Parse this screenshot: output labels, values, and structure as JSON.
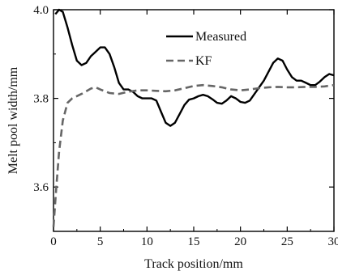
{
  "chart_data": {
    "type": "line",
    "title": "",
    "xlabel": "Track position/mm",
    "ylabel": "Melt pool width/mm",
    "xlim": [
      0,
      30
    ],
    "ylim": [
      3.5,
      4.0
    ],
    "x_ticks": [
      0,
      5,
      10,
      15,
      20,
      25,
      30
    ],
    "x_tick_labels": [
      "0",
      "5",
      "10",
      "15",
      "20",
      "25",
      "30"
    ],
    "y_ticks": [
      3.6,
      3.8,
      4.0
    ],
    "y_tick_labels": [
      "3.6",
      "3.8",
      "4.0"
    ],
    "grid": false,
    "legend": "top-right",
    "series": [
      {
        "name": "Measured",
        "style": "solid",
        "color": "#000000",
        "points": [
          [
            0.2,
            3.99
          ],
          [
            0.6,
            4.0
          ],
          [
            1.0,
            3.995
          ],
          [
            1.5,
            3.96
          ],
          [
            2.0,
            3.92
          ],
          [
            2.5,
            3.885
          ],
          [
            3.0,
            3.875
          ],
          [
            3.5,
            3.88
          ],
          [
            4.0,
            3.895
          ],
          [
            4.5,
            3.905
          ],
          [
            5.0,
            3.915
          ],
          [
            5.5,
            3.915
          ],
          [
            6.0,
            3.9
          ],
          [
            6.5,
            3.87
          ],
          [
            7.0,
            3.835
          ],
          [
            7.5,
            3.82
          ],
          [
            8.0,
            3.82
          ],
          [
            8.5,
            3.815
          ],
          [
            9.0,
            3.805
          ],
          [
            9.5,
            3.8
          ],
          [
            10.0,
            3.8
          ],
          [
            10.5,
            3.8
          ],
          [
            11.0,
            3.795
          ],
          [
            11.5,
            3.77
          ],
          [
            12.0,
            3.745
          ],
          [
            12.5,
            3.738
          ],
          [
            13.0,
            3.745
          ],
          [
            13.5,
            3.765
          ],
          [
            14.0,
            3.785
          ],
          [
            14.5,
            3.797
          ],
          [
            15.0,
            3.8
          ],
          [
            15.5,
            3.805
          ],
          [
            16.0,
            3.808
          ],
          [
            16.5,
            3.805
          ],
          [
            17.0,
            3.798
          ],
          [
            17.5,
            3.79
          ],
          [
            18.0,
            3.788
          ],
          [
            18.5,
            3.795
          ],
          [
            19.0,
            3.805
          ],
          [
            19.5,
            3.8
          ],
          [
            20.0,
            3.792
          ],
          [
            20.5,
            3.79
          ],
          [
            21.0,
            3.795
          ],
          [
            21.5,
            3.81
          ],
          [
            22.0,
            3.825
          ],
          [
            22.5,
            3.84
          ],
          [
            23.0,
            3.86
          ],
          [
            23.5,
            3.88
          ],
          [
            24.0,
            3.89
          ],
          [
            24.5,
            3.885
          ],
          [
            25.0,
            3.865
          ],
          [
            25.5,
            3.848
          ],
          [
            26.0,
            3.84
          ],
          [
            26.5,
            3.84
          ],
          [
            27.0,
            3.835
          ],
          [
            27.5,
            3.83
          ],
          [
            28.0,
            3.83
          ],
          [
            28.5,
            3.838
          ],
          [
            29.0,
            3.848
          ],
          [
            29.5,
            3.855
          ],
          [
            30.0,
            3.852
          ]
        ]
      },
      {
        "name": "KF",
        "style": "dashed",
        "color": "#666666",
        "points": [
          [
            0.0,
            3.51
          ],
          [
            0.3,
            3.6
          ],
          [
            0.6,
            3.68
          ],
          [
            1.0,
            3.75
          ],
          [
            1.5,
            3.79
          ],
          [
            2.0,
            3.8
          ],
          [
            3.0,
            3.81
          ],
          [
            4.0,
            3.822
          ],
          [
            4.5,
            3.825
          ],
          [
            5.0,
            3.82
          ],
          [
            6.0,
            3.812
          ],
          [
            7.0,
            3.81
          ],
          [
            8.0,
            3.815
          ],
          [
            9.0,
            3.818
          ],
          [
            10.0,
            3.818
          ],
          [
            11.0,
            3.817
          ],
          [
            12.0,
            3.816
          ],
          [
            13.0,
            3.818
          ],
          [
            14.0,
            3.823
          ],
          [
            15.0,
            3.828
          ],
          [
            16.0,
            3.83
          ],
          [
            17.0,
            3.828
          ],
          [
            18.0,
            3.825
          ],
          [
            19.0,
            3.82
          ],
          [
            20.0,
            3.818
          ],
          [
            21.0,
            3.82
          ],
          [
            22.0,
            3.823
          ],
          [
            23.0,
            3.825
          ],
          [
            24.0,
            3.826
          ],
          [
            25.0,
            3.825
          ],
          [
            26.0,
            3.825
          ],
          [
            27.0,
            3.826
          ],
          [
            28.0,
            3.826
          ],
          [
            29.0,
            3.827
          ],
          [
            30.0,
            3.83
          ]
        ]
      }
    ]
  }
}
